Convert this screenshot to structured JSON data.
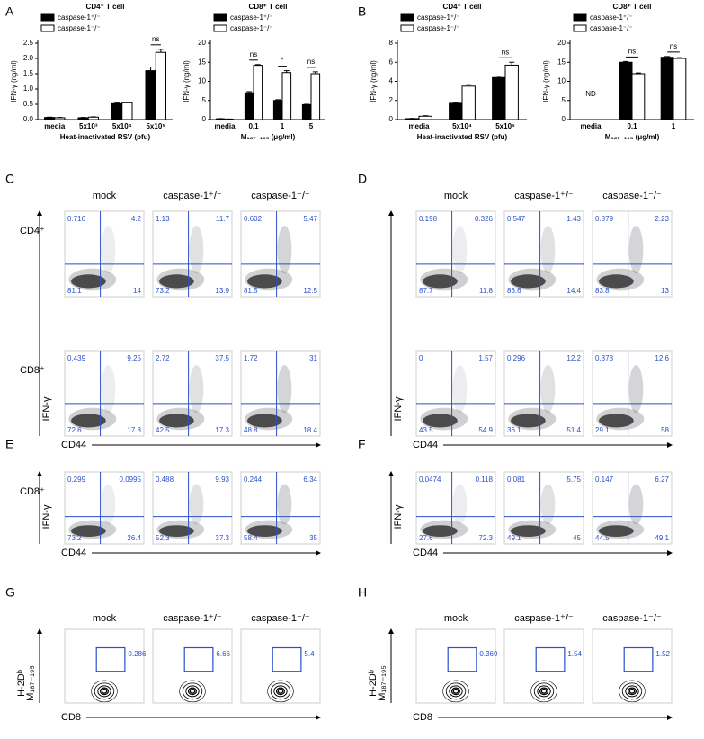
{
  "panel_labels": [
    "A",
    "B",
    "C",
    "D",
    "E",
    "F",
    "G",
    "H"
  ],
  "chart_data": [
    {
      "type": "bar",
      "title": "CD4⁺ T cell",
      "y_label": "IFN-γ (ng/ml)",
      "x_label": "Heat-inactivated RSV (pfu)",
      "categories": [
        "media",
        "5x10³",
        "5x10⁴",
        "5x10⁵"
      ],
      "series": [
        {
          "name": "caspase-1⁺/⁻",
          "color": "#000000",
          "values": [
            0.07,
            0.06,
            0.52,
            1.6
          ],
          "errors": [
            0.01,
            0.01,
            0.02,
            0.12
          ]
        },
        {
          "name": "caspase-1⁻/⁻",
          "color": "#ffffff",
          "values": [
            0.06,
            0.08,
            0.55,
            2.2
          ],
          "errors": [
            0.01,
            0.01,
            0.02,
            0.1
          ]
        }
      ],
      "annotations": [
        null,
        null,
        null,
        "ns"
      ],
      "ylim": [
        0,
        2.5
      ],
      "yticks": [
        {
          "value": 0,
          "label": "0.0"
        },
        0.5,
        {
          "value": 1,
          "label": "1.0"
        },
        1.5,
        {
          "value": 2,
          "label": "2.0"
        },
        2.5
      ]
    },
    {
      "type": "bar",
      "title": "CD8⁺ T cell",
      "y_label": "IFN-γ (ng/ml)",
      "x_label": "M₁₈₇₋₁₉₅ (μg/ml)",
      "categories": [
        "media",
        "0.1",
        "1",
        "5"
      ],
      "series": [
        {
          "name": "caspase-1⁺/⁻",
          "color": "#000000",
          "values": [
            0.2,
            7,
            5,
            3.9
          ],
          "errors": [
            0.05,
            0.3,
            0.2,
            0.1
          ]
        },
        {
          "name": "caspase-1⁻/⁻",
          "color": "#ffffff",
          "values": [
            0.1,
            14.2,
            12.3,
            12
          ],
          "errors": [
            0.05,
            0.2,
            0.5,
            0.5
          ]
        }
      ],
      "annotations": [
        null,
        "ns",
        "*",
        "ns"
      ],
      "ylim": [
        0,
        20
      ],
      "yticks": [
        0,
        5,
        10,
        15,
        20
      ]
    },
    {
      "type": "bar",
      "title": "CD4⁺ T cell",
      "y_label": "IFN-γ (ng/ml)",
      "x_label": "Heat-inactivated RSV (pfu)",
      "categories": [
        "media",
        "5x10⁴",
        "5x10⁵"
      ],
      "series": [
        {
          "name": "caspase-1⁺/⁻",
          "color": "#000000",
          "values": [
            0.1,
            1.7,
            4.4
          ],
          "errors": [
            0.02,
            0.1,
            0.15
          ]
        },
        {
          "name": "caspase-1⁻/⁻",
          "color": "#ffffff",
          "values": [
            0.35,
            3.5,
            5.7
          ],
          "errors": [
            0.05,
            0.15,
            0.3
          ]
        }
      ],
      "annotations": [
        null,
        null,
        "ns"
      ],
      "ylim": [
        0,
        8
      ],
      "yticks": [
        0,
        2,
        4,
        6,
        8
      ]
    },
    {
      "type": "bar",
      "title": "CD8⁺ T cell",
      "y_label": "IFN-γ (ng/ml)",
      "x_label": "M₁₈₇₋₁₉₅ (μg/ml)",
      "categories": [
        "media",
        "0.1",
        "1"
      ],
      "series": [
        {
          "name": "caspase-1⁺/⁻",
          "color": "#000000",
          "values": [
            null,
            15,
            16.3
          ],
          "errors": [
            null,
            0.2,
            0.2
          ]
        },
        {
          "name": "caspase-1⁻/⁻",
          "color": "#ffffff",
          "values": [
            null,
            12,
            16
          ],
          "errors": [
            null,
            0.2,
            0.2
          ]
        }
      ],
      "annotations": [
        "ND",
        "ns",
        "ns"
      ],
      "ylim": [
        0,
        20
      ],
      "yticks": [
        0,
        5,
        10,
        15,
        20
      ]
    }
  ],
  "flow": [
    {
      "columns": [
        "mock",
        "caspase-1⁺/⁻",
        "caspase-1⁻/⁻"
      ],
      "y_label": "IFN-γ",
      "x_label": "CD44",
      "rows": [
        {
          "label": "CD4⁺",
          "cells": [
            [
              0.716,
              4.2,
              81.1,
              14
            ],
            [
              1.13,
              11.7,
              73.2,
              13.9
            ],
            [
              0.602,
              5.47,
              81.5,
              12.5
            ]
          ]
        },
        {
          "label": "CD8⁺",
          "cells": [
            [
              0.439,
              9.25,
              72.6,
              17.8
            ],
            [
              2.72,
              37.5,
              42.5,
              17.3
            ],
            [
              1.72,
              31,
              48.8,
              18.4
            ]
          ]
        }
      ]
    },
    {
      "columns": [
        "mock",
        "caspase-1⁺/⁻",
        "caspase-1⁻/⁻"
      ],
      "y_label": "IFN-γ",
      "x_label": "CD44",
      "rows": [
        {
          "cells": [
            [
              0.198,
              0.326,
              87.7,
              11.8
            ],
            [
              0.547,
              1.43,
              83.6,
              14.4
            ],
            [
              0.879,
              2.23,
              83.8,
              13
            ]
          ]
        },
        {
          "cells": [
            [
              0,
              1.57,
              43.5,
              54.9
            ],
            [
              0.296,
              12.2,
              36.1,
              51.4
            ],
            [
              0.373,
              12.6,
              29.1,
              58
            ]
          ]
        }
      ]
    },
    {
      "y_label": "IFN-γ",
      "x_label": "CD44",
      "rows": [
        {
          "label": "CD8⁺",
          "cells": [
            [
              0.299,
              0.0995,
              73.2,
              26.4
            ],
            [
              0.488,
              9.93,
              52.3,
              37.3
            ],
            [
              0.244,
              6.34,
              58.4,
              35
            ]
          ]
        }
      ]
    },
    {
      "y_label": "IFN-γ",
      "x_label": "CD44",
      "rows": [
        {
          "cells": [
            [
              0.0474,
              0.118,
              27.6,
              72.3
            ],
            [
              0.081,
              5.75,
              49.1,
              45
            ],
            [
              0.147,
              6.27,
              44.5,
              49.1
            ]
          ]
        }
      ]
    }
  ],
  "gates": [
    {
      "columns": [
        "mock",
        "caspase-1⁺/⁻",
        "caspase-1⁻/⁻"
      ],
      "y_label": [
        "H-2Dᵇ",
        "M₁₈₇₋₁₉₅"
      ],
      "x_label": "CD8",
      "values": [
        0.286,
        6.66,
        5.4
      ]
    },
    {
      "columns": [
        "mock",
        "caspase-1⁺/⁻",
        "caspase-1⁻/⁻"
      ],
      "y_label": [
        "H-2Dᵇ",
        "M₁₈₇₋₁₉₅"
      ],
      "x_label": "CD8",
      "values": [
        0.369,
        1.54,
        1.52
      ]
    }
  ]
}
